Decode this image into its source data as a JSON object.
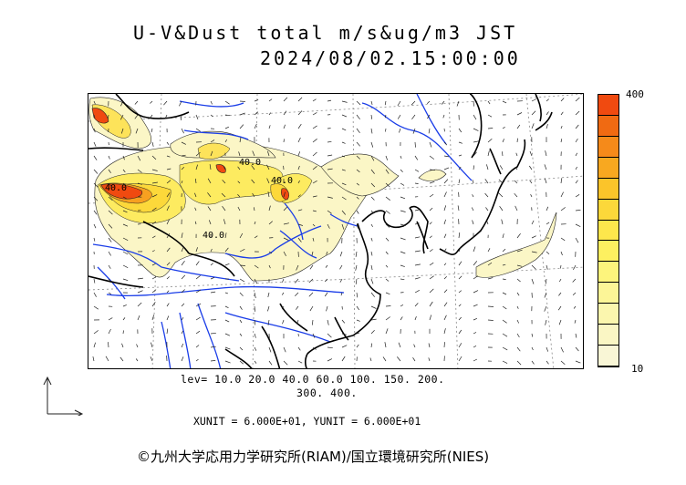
{
  "title": {
    "line1": "U-V&Dust total m/s&ug/m3 JST",
    "line2": "2024/08/02.15:00:00"
  },
  "colorbar": {
    "max_label": "400",
    "min_label": "10",
    "colors": [
      "#f04a10",
      "#f06a12",
      "#f58a1a",
      "#f8a820",
      "#fbc42a",
      "#fcd83a",
      "#fde74c",
      "#fdf060",
      "#fdf47c",
      "#fcf597",
      "#fbf6ae",
      "#faf6c4",
      "#f9f6d6"
    ]
  },
  "levels": {
    "line1": "lev= 10.0 20.0 40.0 60.0 100. 150. 200.",
    "line2": "300. 400."
  },
  "units": "XUNIT = 6.000E+01, YUNIT = 6.000E+01",
  "contour_labels": [
    "40.0",
    "40.0",
    "40.0",
    "40.0"
  ],
  "credit": "©九州大学応用力学研究所(RIAM)/国立環境研究所(NIES)",
  "palette": {
    "dust_light": "#fbf6c6",
    "dust_mid": "#fdeb60",
    "dust_yellow": "#fce23a",
    "dust_orange": "#f7a020",
    "dust_red": "#f04a10",
    "river": "#1a3de8",
    "coast": "#000000",
    "grid": "#777777"
  }
}
